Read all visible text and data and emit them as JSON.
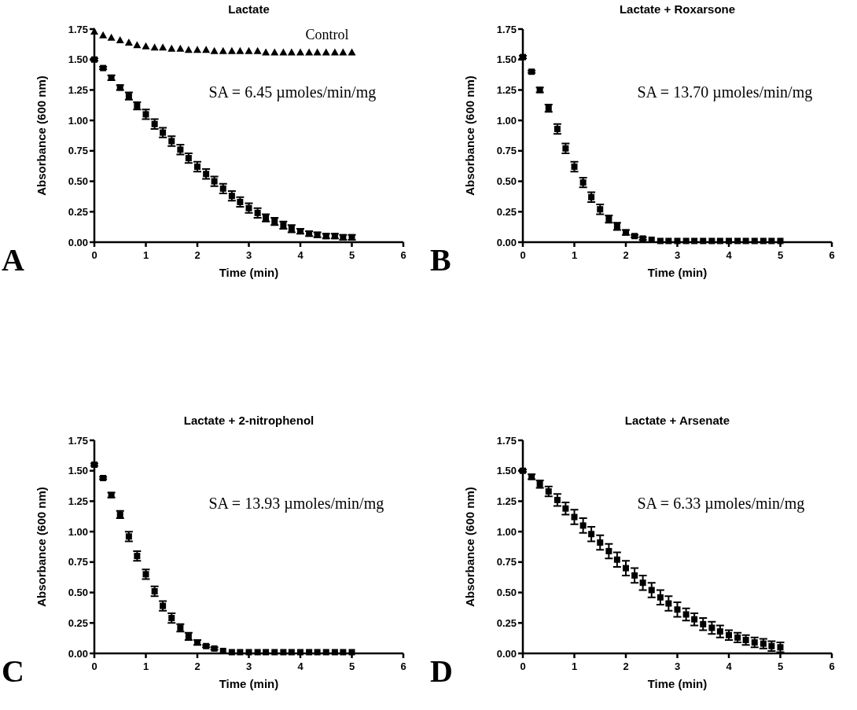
{
  "chart_data": [
    {
      "type": "scatter",
      "title": "Lactate",
      "xlabel": "Time (min)",
      "ylabel": "Absorbance (600 nm)",
      "xlim": [
        0,
        6
      ],
      "xticks": [
        0,
        1,
        2,
        3,
        4,
        5,
        6
      ],
      "ylim": [
        0,
        1.75
      ],
      "yticks": [
        {
          "value": 0,
          "label": "0.00"
        },
        {
          "value": 0.25,
          "label": "0.25"
        },
        {
          "value": 0.5,
          "label": "0.50"
        },
        {
          "value": 0.75,
          "label": "0.75"
        },
        {
          "value": 1,
          "label": "1.00"
        },
        {
          "value": 1.25,
          "label": "1.25"
        },
        {
          "value": 1.5,
          "label": "1.50"
        },
        {
          "value": 1.75,
          "label": "1.75"
        }
      ],
      "grid": false,
      "annotations": [
        "A",
        "SA = 6.45 µmoles/min/mg"
      ],
      "x": [
        0,
        0.17,
        0.33,
        0.5,
        0.67,
        0.83,
        1,
        1.17,
        1.33,
        1.5,
        1.67,
        1.83,
        2,
        2.17,
        2.33,
        2.5,
        2.67,
        2.83,
        3,
        3.17,
        3.33,
        3.5,
        3.67,
        3.83,
        4,
        4.17,
        4.33,
        4.5,
        4.67,
        4.83,
        5
      ],
      "series": [
        {
          "name": "Control",
          "color": "#000000",
          "marker": "triangle",
          "values": [
            1.73,
            1.7,
            1.68,
            1.66,
            1.64,
            1.62,
            1.61,
            1.6,
            1.6,
            1.59,
            1.59,
            1.58,
            1.58,
            1.58,
            1.57,
            1.57,
            1.57,
            1.57,
            1.57,
            1.57,
            1.56,
            1.56,
            1.56,
            1.56,
            1.56,
            1.56,
            1.56,
            1.56,
            1.56,
            1.56,
            1.56
          ]
        },
        {
          "color": "#000000",
          "marker": "square",
          "values": [
            1.5,
            1.43,
            1.35,
            1.27,
            1.2,
            1.12,
            1.05,
            0.97,
            0.9,
            0.83,
            0.76,
            0.69,
            0.62,
            0.56,
            0.5,
            0.44,
            0.38,
            0.33,
            0.28,
            0.24,
            0.2,
            0.17,
            0.14,
            0.11,
            0.09,
            0.07,
            0.06,
            0.05,
            0.05,
            0.04,
            0.04
          ],
          "errors": [
            0.01,
            0.01,
            0.02,
            0.02,
            0.03,
            0.03,
            0.04,
            0.04,
            0.04,
            0.04,
            0.04,
            0.04,
            0.04,
            0.04,
            0.04,
            0.04,
            0.04,
            0.04,
            0.04,
            0.04,
            0.03,
            0.03,
            0.03,
            0.03,
            0.02,
            0.02,
            0.02,
            0.02,
            0.02,
            0.02,
            0.02
          ]
        }
      ]
    },
    {
      "type": "scatter",
      "title": "Lactate + Roxarsone",
      "xlabel": "Time (min)",
      "ylabel": "Absorbance (600 nm)",
      "xlim": [
        0,
        6
      ],
      "xticks": [
        0,
        1,
        2,
        3,
        4,
        5,
        6
      ],
      "ylim": [
        0,
        1.75
      ],
      "yticks": [
        {
          "value": 0,
          "label": "0.00"
        },
        {
          "value": 0.25,
          "label": "0.25"
        },
        {
          "value": 0.5,
          "label": "0.50"
        },
        {
          "value": 0.75,
          "label": "0.75"
        },
        {
          "value": 1,
          "label": "1.00"
        },
        {
          "value": 1.25,
          "label": "1.25"
        },
        {
          "value": 1.5,
          "label": "1.50"
        },
        {
          "value": 1.75,
          "label": "1.75"
        }
      ],
      "grid": false,
      "annotations": [
        "B",
        "SA = 13.70 µmoles/min/mg"
      ],
      "x": [
        0,
        0.17,
        0.33,
        0.5,
        0.67,
        0.83,
        1,
        1.17,
        1.33,
        1.5,
        1.67,
        1.83,
        2,
        2.17,
        2.33,
        2.5,
        2.67,
        2.83,
        3,
        3.17,
        3.33,
        3.5,
        3.67,
        3.83,
        4,
        4.17,
        4.33,
        4.5,
        4.67,
        4.83,
        5
      ],
      "series": [
        {
          "color": "#000000",
          "marker": "square",
          "values": [
            1.52,
            1.4,
            1.25,
            1.1,
            0.93,
            0.77,
            0.62,
            0.49,
            0.37,
            0.27,
            0.19,
            0.13,
            0.08,
            0.05,
            0.03,
            0.02,
            0.01,
            0.01,
            0.01,
            0.01,
            0.01,
            0.01,
            0.01,
            0.01,
            0.01,
            0.01,
            0.01,
            0.01,
            0.01,
            0.01,
            0.01
          ],
          "errors": [
            0.01,
            0.01,
            0.02,
            0.03,
            0.04,
            0.04,
            0.04,
            0.04,
            0.04,
            0.04,
            0.03,
            0.03,
            0.02,
            0.01,
            0.01,
            null,
            null,
            null,
            null,
            null,
            null,
            null,
            null,
            null,
            null,
            null,
            null,
            null,
            null,
            null,
            null
          ]
        }
      ]
    },
    {
      "type": "scatter",
      "title": "Lactate + 2-nitrophenol",
      "xlabel": "Time (min)",
      "ylabel": "Absorbance (600 nm)",
      "xlim": [
        0,
        6
      ],
      "xticks": [
        0,
        1,
        2,
        3,
        4,
        5,
        6
      ],
      "ylim": [
        0,
        1.75
      ],
      "yticks": [
        {
          "value": 0,
          "label": "0.00"
        },
        {
          "value": 0.25,
          "label": "0.25"
        },
        {
          "value": 0.5,
          "label": "0.50"
        },
        {
          "value": 0.75,
          "label": "0.75"
        },
        {
          "value": 1,
          "label": "1.00"
        },
        {
          "value": 1.25,
          "label": "1.25"
        },
        {
          "value": 1.5,
          "label": "1.50"
        },
        {
          "value": 1.75,
          "label": "1.75"
        }
      ],
      "grid": false,
      "annotations": [
        "C",
        "SA = 13.93 µmoles/min/mg"
      ],
      "x": [
        0,
        0.17,
        0.33,
        0.5,
        0.67,
        0.83,
        1,
        1.17,
        1.33,
        1.5,
        1.67,
        1.83,
        2,
        2.17,
        2.33,
        2.5,
        2.67,
        2.83,
        3,
        3.17,
        3.33,
        3.5,
        3.67,
        3.83,
        4,
        4.17,
        4.33,
        4.5,
        4.67,
        4.83,
        5
      ],
      "series": [
        {
          "color": "#000000",
          "marker": "square",
          "values": [
            1.55,
            1.44,
            1.3,
            1.14,
            0.96,
            0.8,
            0.65,
            0.51,
            0.39,
            0.29,
            0.21,
            0.14,
            0.09,
            0.06,
            0.04,
            0.02,
            0.01,
            0.01,
            0.01,
            0.01,
            0.01,
            0.01,
            0.01,
            0.01,
            0.01,
            0.01,
            0.01,
            0.01,
            0.01,
            0.01,
            0.01
          ],
          "errors": [
            0.01,
            0.01,
            0.02,
            0.03,
            0.04,
            0.04,
            0.04,
            0.04,
            0.04,
            0.04,
            0.03,
            0.03,
            0.02,
            0.01,
            0.01,
            null,
            null,
            null,
            null,
            null,
            null,
            null,
            null,
            null,
            null,
            null,
            null,
            null,
            null,
            null,
            null
          ]
        }
      ]
    },
    {
      "type": "scatter",
      "title": "Lactate + Arsenate",
      "xlabel": "Time (min)",
      "ylabel": "Absorbance (600 nm)",
      "xlim": [
        0,
        6
      ],
      "xticks": [
        0,
        1,
        2,
        3,
        4,
        5,
        6
      ],
      "ylim": [
        0,
        1.75
      ],
      "yticks": [
        {
          "value": 0,
          "label": "0.00"
        },
        {
          "value": 0.25,
          "label": "0.25"
        },
        {
          "value": 0.5,
          "label": "0.50"
        },
        {
          "value": 0.75,
          "label": "0.75"
        },
        {
          "value": 1,
          "label": "1.00"
        },
        {
          "value": 1.25,
          "label": "1.25"
        },
        {
          "value": 1.5,
          "label": "1.50"
        },
        {
          "value": 1.75,
          "label": "1.75"
        }
      ],
      "grid": false,
      "annotations": [
        "D",
        "SA = 6.33 µmoles/min/mg"
      ],
      "x": [
        0,
        0.17,
        0.33,
        0.5,
        0.67,
        0.83,
        1,
        1.17,
        1.33,
        1.5,
        1.67,
        1.83,
        2,
        2.17,
        2.33,
        2.5,
        2.67,
        2.83,
        3,
        3.17,
        3.33,
        3.5,
        3.67,
        3.83,
        4,
        4.17,
        4.33,
        4.5,
        4.67,
        4.83,
        5
      ],
      "series": [
        {
          "color": "#000000",
          "marker": "square",
          "values": [
            1.5,
            1.45,
            1.39,
            1.33,
            1.26,
            1.19,
            1.12,
            1.05,
            0.98,
            0.91,
            0.84,
            0.77,
            0.7,
            0.64,
            0.58,
            0.52,
            0.46,
            0.41,
            0.36,
            0.32,
            0.28,
            0.24,
            0.21,
            0.18,
            0.15,
            0.13,
            0.11,
            0.09,
            0.08,
            0.06,
            0.05
          ],
          "errors": [
            0.01,
            0.02,
            0.03,
            0.04,
            0.05,
            0.05,
            0.06,
            0.06,
            0.06,
            0.06,
            0.06,
            0.06,
            0.06,
            0.06,
            0.06,
            0.06,
            0.06,
            0.06,
            0.06,
            0.05,
            0.05,
            0.05,
            0.05,
            0.05,
            0.04,
            0.04,
            0.04,
            0.04,
            0.04,
            0.04,
            0.04
          ]
        }
      ]
    }
  ]
}
